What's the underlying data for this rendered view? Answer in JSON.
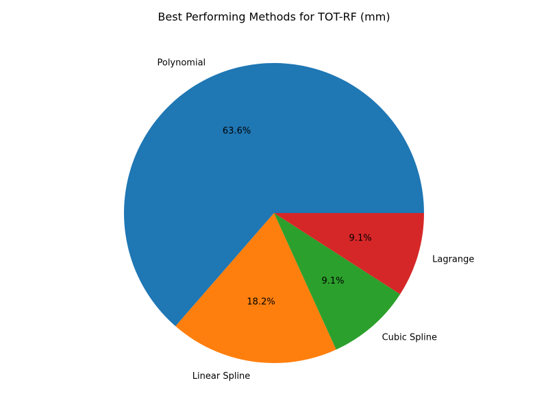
{
  "chart_data": {
    "type": "pie",
    "title": "Best Performing Methods for TOT-RF (mm)",
    "slices": [
      {
        "label": "Polynomial",
        "value": 63.6,
        "pct_label": "63.6%",
        "color": "#1f77b4"
      },
      {
        "label": "Linear Spline",
        "value": 18.2,
        "pct_label": "18.2%",
        "color": "#ff7f0e"
      },
      {
        "label": "Cubic Spline",
        "value": 9.1,
        "pct_label": "9.1%",
        "color": "#2ca02c"
      },
      {
        "label": "Lagrange",
        "value": 9.1,
        "pct_label": "9.1%",
        "color": "#d62728"
      }
    ],
    "start_angle_deg": 0,
    "direction": "counterclockwise",
    "legend": "none"
  }
}
